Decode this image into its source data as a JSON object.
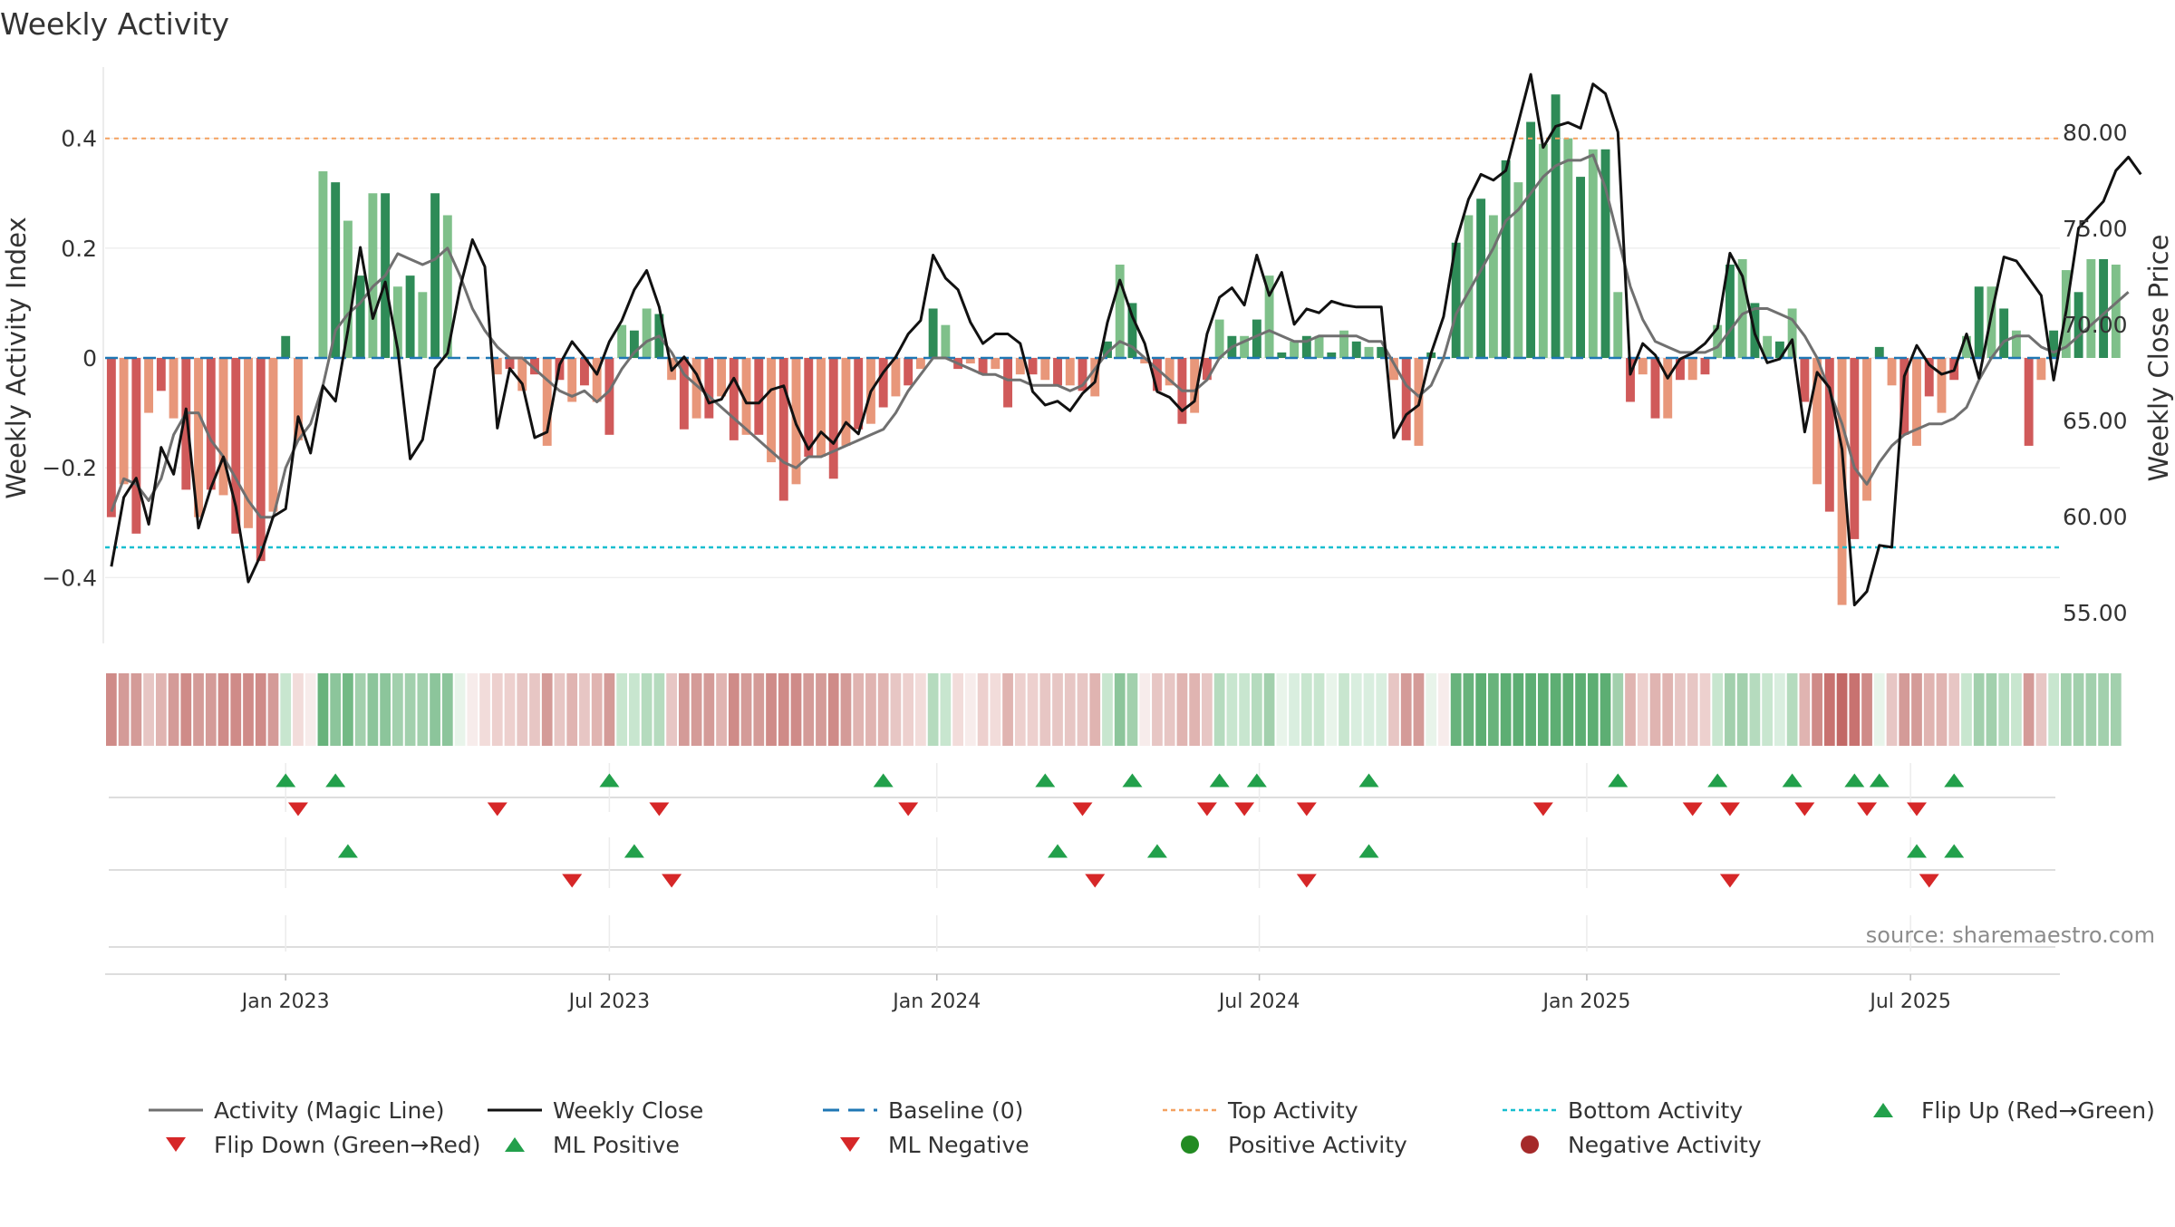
{
  "chart_data": {
    "type": "bar",
    "title": "Weekly Activity",
    "ylabel_left": "Weekly Activity Index",
    "ylabel_right": "Weekly Close Price",
    "ylim_left": [
      -0.52,
      0.52
    ],
    "ylim_right": [
      53.4,
      83.1
    ],
    "yticks_left": [
      {
        "value": -0.4,
        "label": "−0.4"
      },
      {
        "value": -0.2,
        "label": "−0.2"
      },
      {
        "value": 0,
        "label": "0"
      },
      {
        "value": 0.2,
        "label": "0.2"
      },
      {
        "value": 0.4,
        "label": "0.4"
      }
    ],
    "yticks_right": [
      "55.00",
      "60.00",
      "65.00",
      "70.00",
      "75.00",
      "80.00"
    ],
    "x_range": [
      0,
      157
    ],
    "x_ticks": [
      {
        "pos": 14.5,
        "label": "Jan 2023"
      },
      {
        "pos": 40.5,
        "label": "Jul 2023"
      },
      {
        "pos": 66.8,
        "label": "Jan 2024"
      },
      {
        "pos": 92.7,
        "label": "Jul 2024"
      },
      {
        "pos": 119,
        "label": "Jan 2025"
      },
      {
        "pos": 145,
        "label": "Jul 2025"
      }
    ],
    "activity": [
      -0.29,
      -0.23,
      -0.32,
      -0.1,
      -0.06,
      -0.11,
      -0.24,
      -0.29,
      -0.24,
      -0.25,
      -0.32,
      -0.31,
      -0.37,
      -0.28,
      0.04,
      -0.15,
      0.0,
      0.34,
      0.32,
      0.25,
      0.15,
      0.3,
      0.3,
      0.13,
      0.15,
      0.12,
      0.3,
      0.26,
      0.0,
      0.0,
      0.0,
      -0.03,
      -0.02,
      -0.06,
      -0.03,
      -0.16,
      -0.04,
      -0.08,
      -0.05,
      -0.08,
      -0.14,
      0.06,
      0.05,
      0.09,
      0.08,
      -0.04,
      -0.13,
      -0.11,
      -0.11,
      -0.07,
      -0.15,
      -0.14,
      -0.14,
      -0.19,
      -0.26,
      -0.23,
      -0.18,
      -0.18,
      -0.22,
      -0.16,
      -0.13,
      -0.12,
      -0.09,
      -0.07,
      -0.05,
      -0.02,
      0.09,
      0.06,
      -0.02,
      -0.01,
      -0.03,
      -0.02,
      -0.09,
      -0.03,
      -0.03,
      -0.04,
      -0.05,
      -0.05,
      -0.06,
      -0.07,
      0.03,
      0.17,
      0.1,
      -0.01,
      -0.06,
      -0.05,
      -0.12,
      -0.1,
      -0.04,
      0.07,
      0.04,
      0.04,
      0.07,
      0.15,
      0.01,
      0.03,
      0.04,
      0.04,
      0.01,
      0.05,
      0.03,
      0.02,
      0.02,
      -0.04,
      -0.15,
      -0.16,
      0.01,
      0.0,
      0.21,
      0.26,
      0.29,
      0.26,
      0.36,
      0.32,
      0.43,
      0.39,
      0.48,
      0.4,
      0.33,
      0.38,
      0.38,
      0.12,
      -0.08,
      -0.03,
      -0.11,
      -0.11,
      -0.04,
      -0.04,
      -0.03,
      0.06,
      0.17,
      0.18,
      0.1,
      0.04,
      0.03,
      0.09,
      -0.08,
      -0.23,
      -0.28,
      -0.45,
      -0.33,
      -0.26,
      0.02,
      -0.05,
      -0.14,
      -0.16,
      -0.07,
      -0.1,
      -0.04,
      0.04,
      0.13,
      0.13,
      0.09,
      0.05,
      -0.16,
      -0.04,
      0.05,
      0.16,
      0.12,
      0.18,
      0.18,
      0.17
    ],
    "magic_line": [
      -0.28,
      -0.22,
      -0.23,
      -0.26,
      -0.22,
      -0.14,
      -0.1,
      -0.1,
      -0.15,
      -0.18,
      -0.22,
      -0.26,
      -0.29,
      -0.29,
      -0.2,
      -0.15,
      -0.12,
      -0.05,
      0.05,
      0.08,
      0.1,
      0.13,
      0.15,
      0.19,
      0.18,
      0.17,
      0.18,
      0.2,
      0.15,
      0.09,
      0.05,
      0.02,
      0.0,
      0.0,
      -0.02,
      -0.04,
      -0.06,
      -0.07,
      -0.06,
      -0.08,
      -0.06,
      -0.02,
      0.01,
      0.03,
      0.04,
      0.01,
      -0.03,
      -0.05,
      -0.07,
      -0.09,
      -0.11,
      -0.13,
      -0.15,
      -0.17,
      -0.19,
      -0.2,
      -0.18,
      -0.18,
      -0.17,
      -0.16,
      -0.15,
      -0.14,
      -0.13,
      -0.1,
      -0.06,
      -0.03,
      0.0,
      0.0,
      -0.01,
      -0.02,
      -0.03,
      -0.03,
      -0.04,
      -0.04,
      -0.05,
      -0.05,
      -0.05,
      -0.06,
      -0.05,
      -0.02,
      0.01,
      0.03,
      0.02,
      0.0,
      -0.02,
      -0.04,
      -0.06,
      -0.06,
      -0.04,
      0.0,
      0.02,
      0.03,
      0.04,
      0.05,
      0.04,
      0.03,
      0.03,
      0.04,
      0.04,
      0.04,
      0.04,
      0.03,
      0.03,
      -0.01,
      -0.05,
      -0.07,
      -0.05,
      0.0,
      0.08,
      0.12,
      0.16,
      0.2,
      0.25,
      0.27,
      0.3,
      0.33,
      0.35,
      0.36,
      0.36,
      0.37,
      0.31,
      0.22,
      0.13,
      0.07,
      0.03,
      0.02,
      0.01,
      0.01,
      0.01,
      0.02,
      0.05,
      0.08,
      0.09,
      0.09,
      0.08,
      0.07,
      0.04,
      0.0,
      -0.06,
      -0.12,
      -0.2,
      -0.23,
      -0.19,
      -0.16,
      -0.14,
      -0.13,
      -0.12,
      -0.12,
      -0.11,
      -0.09,
      -0.04,
      0.0,
      0.03,
      0.04,
      0.04,
      0.02,
      0.01,
      0.02,
      0.04,
      0.06,
      0.08,
      0.1,
      0.12
    ],
    "weekly_close": [
      57.4,
      61.0,
      62.0,
      59.6,
      63.6,
      62.2,
      65.6,
      59.4,
      61.5,
      63.1,
      60.5,
      56.6,
      58.0,
      60.0,
      60.4,
      65.2,
      63.3,
      66.8,
      66.0,
      69.7,
      74.0,
      70.3,
      72.2,
      68.7,
      63.0,
      64.0,
      67.7,
      68.5,
      71.9,
      74.4,
      73.0,
      64.6,
      67.7,
      66.9,
      64.1,
      64.4,
      67.9,
      69.1,
      68.3,
      67.4,
      69.1,
      70.2,
      71.8,
      72.8,
      70.9,
      67.6,
      68.3,
      67.4,
      65.9,
      66.1,
      67.2,
      65.9,
      65.9,
      66.6,
      66.8,
      64.8,
      63.5,
      64.4,
      63.8,
      64.9,
      64.3,
      66.5,
      67.5,
      68.3,
      69.5,
      70.2,
      73.6,
      72.4,
      71.8,
      70.1,
      69.0,
      69.5,
      69.5,
      69.0,
      66.5,
      65.8,
      66.0,
      65.5,
      66.4,
      67.0,
      70.1,
      72.3,
      70.4,
      69.0,
      66.5,
      66.2,
      65.5,
      66.0,
      69.5,
      71.4,
      71.9,
      71.0,
      73.6,
      71.5,
      72.7,
      70.0,
      70.8,
      70.6,
      71.2,
      71.0,
      70.9,
      70.9,
      70.9,
      64.1,
      65.3,
      65.8,
      68.5,
      70.4,
      74.3,
      76.5,
      77.8,
      77.5,
      78.0,
      80.5,
      83.0,
      79.2,
      80.3,
      80.5,
      80.2,
      82.5,
      82.0,
      80.0,
      67.4,
      69.0,
      68.4,
      67.2,
      68.2,
      68.5,
      69.0,
      69.8,
      73.7,
      72.5,
      69.5,
      68.0,
      68.2,
      69.2,
      64.4,
      67.5,
      66.7,
      63.5,
      55.4,
      56.1,
      58.5,
      58.4,
      67.3,
      68.9,
      67.9,
      67.4,
      67.6,
      69.5,
      67.2,
      70.5,
      73.5,
      73.3,
      72.4,
      71.5,
      67.1,
      70.7,
      75.0,
      75.7,
      76.4,
      78.0,
      78.7,
      77.8
    ],
    "top_activity": 0.4,
    "bottom_activity": -0.345,
    "baseline": 0,
    "ribbon_colors": [
      "#cf8b88",
      "#d49b98",
      "#d49b98",
      "#e7c6c4",
      "#e0b4b1",
      "#d49b98",
      "#cf8b88",
      "#d49b98",
      "#d49b98",
      "#cf8b88",
      "#cf8b88",
      "#cf8b88",
      "#cf8b88",
      "#d49b98",
      "#c8e6cf",
      "#f2dcda",
      "#f7eceb",
      "#68b37c",
      "#8cc59b",
      "#73b985",
      "#a2d0ad",
      "#8cc59b",
      "#8cc59b",
      "#a2d0ad",
      "#a2d0ad",
      "#a2d0ad",
      "#8cc59b",
      "#8cc59b",
      "#e8f4ea",
      "#f7eceb",
      "#f2dcda",
      "#edd0ce",
      "#edd0ce",
      "#e7c6c4",
      "#e7c6c4",
      "#d49b98",
      "#e7c6c4",
      "#e0b4b1",
      "#e7c6c4",
      "#e0b4b1",
      "#d49b98",
      "#c8e6cf",
      "#c8e6cf",
      "#b5dbbe",
      "#b5dbbe",
      "#e7c6c4",
      "#d49b98",
      "#d49b98",
      "#d49b98",
      "#e0b4b1",
      "#cf8b88",
      "#d49b98",
      "#d49b98",
      "#cf8b88",
      "#cf8b88",
      "#cf8b88",
      "#d49b98",
      "#d49b98",
      "#cf8b88",
      "#d49b98",
      "#e0b4b1",
      "#e0b4b1",
      "#e0b4b1",
      "#e7c6c4",
      "#edd0ce",
      "#f2dcda",
      "#b5dbbe",
      "#c8e6cf",
      "#f2dcda",
      "#f7eceb",
      "#edd0ce",
      "#f2dcda",
      "#e0b4b1",
      "#edd0ce",
      "#edd0ce",
      "#e7c6c4",
      "#e7c6c4",
      "#e7c6c4",
      "#e7c6c4",
      "#e0b4b1",
      "#c8e6cf",
      "#8cc59b",
      "#a2d0ad",
      "#f7eceb",
      "#e7c6c4",
      "#e7c6c4",
      "#e0b4b1",
      "#e0b4b1",
      "#e7c6c4",
      "#b5dbbe",
      "#c8e6cf",
      "#c8e6cf",
      "#b5dbbe",
      "#a2d0ad",
      "#e8f4ea",
      "#d9eedf",
      "#c8e6cf",
      "#c8e6cf",
      "#e8f4ea",
      "#c8e6cf",
      "#d9eedf",
      "#d9eedf",
      "#d9eedf",
      "#e7c6c4",
      "#d49b98",
      "#d49b98",
      "#e8f4ea",
      "#f7eceb",
      "#68b37c",
      "#68b37c",
      "#5dae73",
      "#68b37c",
      "#5dae73",
      "#5dae73",
      "#5dae73",
      "#5dae73",
      "#5dae73",
      "#5dae73",
      "#5dae73",
      "#5dae73",
      "#5dae73",
      "#a2d0ad",
      "#e0b4b1",
      "#edd0ce",
      "#e0b4b1",
      "#e0b4b1",
      "#e7c6c4",
      "#e7c6c4",
      "#edd0ce",
      "#c8e6cf",
      "#a2d0ad",
      "#a2d0ad",
      "#b5dbbe",
      "#c8e6cf",
      "#d9eedf",
      "#b5dbbe",
      "#e0b4b1",
      "#cf8b88",
      "#c87270",
      "#c26866",
      "#c87270",
      "#cf8b88",
      "#e8f4ea",
      "#e7c6c4",
      "#d49b98",
      "#d49b98",
      "#e0b4b1",
      "#e0b4b1",
      "#e7c6c4",
      "#c8e6cf",
      "#a2d0ad",
      "#a2d0ad",
      "#b5dbbe",
      "#c8e6cf",
      "#d49b98",
      "#e7c6c4",
      "#c8e6cf",
      "#a2d0ad",
      "#a2d0ad",
      "#a2d0ad",
      "#a2d0ad",
      "#a2d0ad"
    ],
    "flip_up": [
      14.5,
      18.5,
      40.5,
      62.5,
      75.5,
      82.5,
      89.5,
      92.5,
      101.5,
      121.5,
      129.5,
      135.5,
      140.5,
      142.5,
      148.5
    ],
    "flip_down": [
      15.5,
      31.5,
      44.5,
      64.5,
      78.5,
      88.5,
      91.5,
      96.5,
      115.5,
      127.5,
      130.5,
      136.5,
      141.5,
      145.5
    ],
    "ml_positive": [
      19.5,
      42.5,
      76.5,
      84.5,
      101.5,
      145.5,
      148.5
    ],
    "ml_negative": [
      37.5,
      45.5,
      79.5,
      96.5,
      130.5,
      146.5
    ],
    "legend": [
      {
        "key": "activity_line",
        "label": "Activity (Magic Line)"
      },
      {
        "key": "weekly_close",
        "label": "Weekly Close"
      },
      {
        "key": "baseline",
        "label": "Baseline (0)"
      },
      {
        "key": "top",
        "label": "Top Activity"
      },
      {
        "key": "bottom",
        "label": "Bottom Activity"
      },
      {
        "key": "flip_up",
        "label": "Flip Up (Red→Green)"
      },
      {
        "key": "flip_down",
        "label": "Flip Down (Green→Red)"
      },
      {
        "key": "ml_positive",
        "label": "ML Positive"
      },
      {
        "key": "ml_negative",
        "label": "ML Negative"
      },
      {
        "key": "positive_activity",
        "label": "Positive Activity"
      },
      {
        "key": "negative_activity",
        "label": "Negative Activity"
      }
    ],
    "source": "source: sharemaestro.com"
  },
  "colors": {
    "bar_green_dark": "#2e8b57",
    "bar_green_light": "#7fc08a",
    "bar_red_dark": "#d05a5a",
    "bar_red_light": "#e8977a",
    "magic_line": "#707070",
    "weekly_close": "#111111",
    "baseline": "#1f77b4",
    "top": "#f4a261",
    "bottom": "#17becf",
    "marker_green": "#22a04b",
    "marker_red": "#d62728",
    "dot_green": "#228b22",
    "dot_red": "#a52a2a"
  }
}
